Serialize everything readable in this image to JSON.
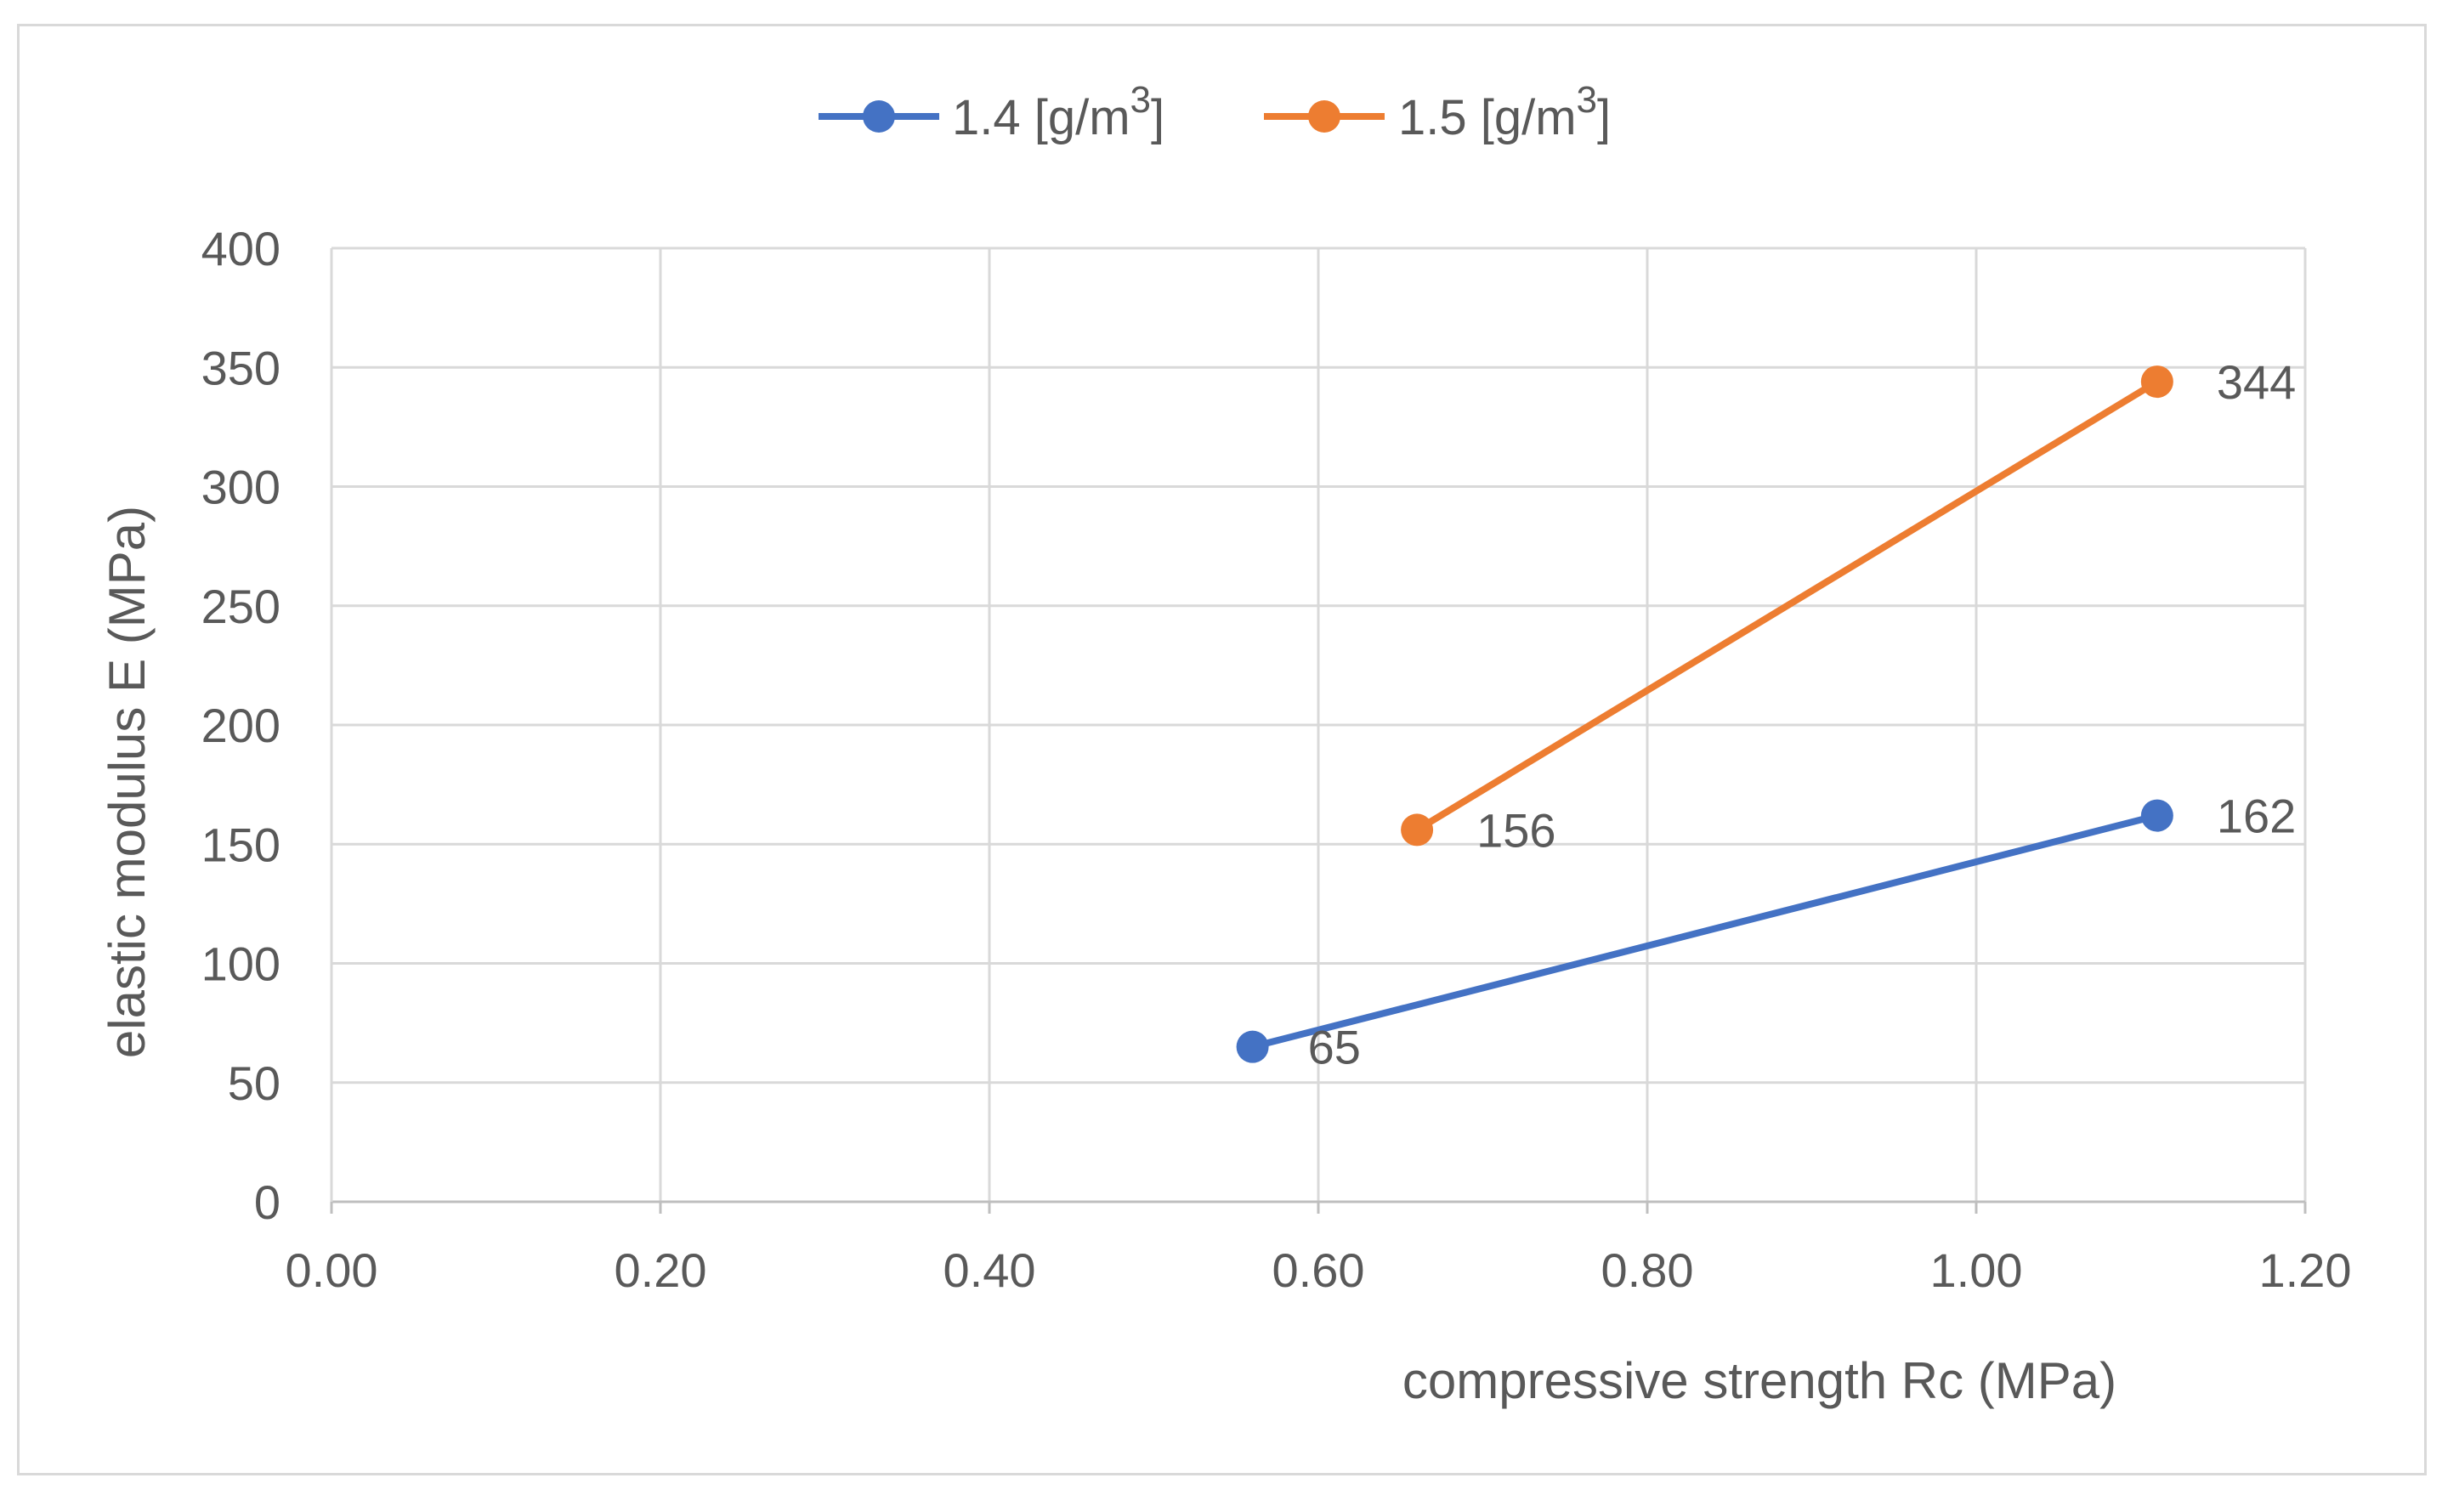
{
  "chart_data": {
    "type": "scatter",
    "title": "",
    "xlabel": "compressive strength Rc (MPa)",
    "ylabel": "elastic modulus E (MPa)",
    "xlim": [
      0,
      1.2
    ],
    "ylim": [
      0,
      400
    ],
    "x_ticks": [
      "0.00",
      "0.20",
      "0.40",
      "0.60",
      "0.80",
      "1.00",
      "1.20"
    ],
    "y_ticks": [
      "0",
      "50",
      "100",
      "150",
      "200",
      "250",
      "300",
      "350",
      "400"
    ],
    "grid": true,
    "legend_position": "top-center",
    "series": [
      {
        "name": "1.4 [g/m",
        "name_sup": "3",
        "name_suffix": "]",
        "color": "#4472C4",
        "points": [
          {
            "x": 0.56,
            "y": 65,
            "label": "65"
          },
          {
            "x": 1.11,
            "y": 162,
            "label": "162"
          }
        ]
      },
      {
        "name": "1.5 [g/m",
        "name_sup": "3",
        "name_suffix": "]",
        "color": "#ED7D31",
        "points": [
          {
            "x": 0.66,
            "y": 156,
            "label": "156"
          },
          {
            "x": 1.11,
            "y": 344,
            "label": "344"
          }
        ]
      }
    ]
  }
}
